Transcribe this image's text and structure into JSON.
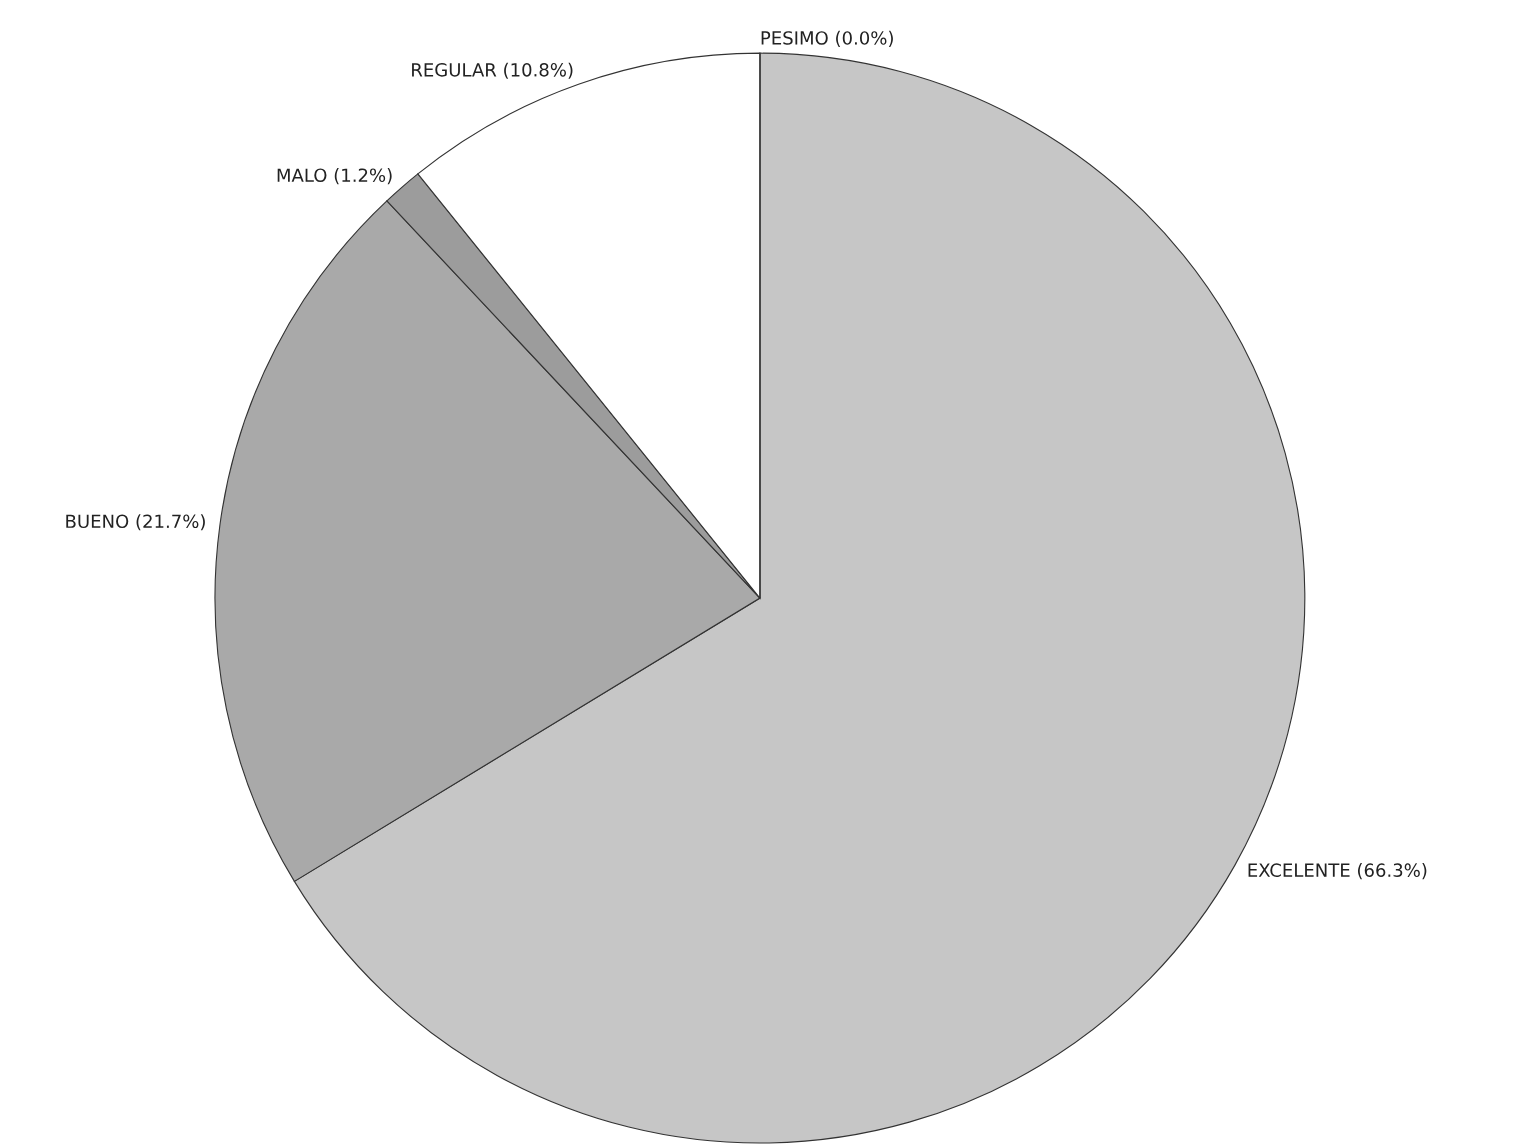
{
  "chart_data": {
    "type": "pie",
    "categories": [
      "EXCELENTE",
      "BUENO",
      "MALO",
      "REGULAR",
      "PESIMO"
    ],
    "values": [
      66.3,
      21.7,
      1.2,
      10.8,
      0.0
    ],
    "value_labels": [
      "(66.3%)",
      "(21.7%)",
      "(1.2%)",
      "(10.8%)",
      "(0.0%)"
    ],
    "colors": [
      "#c6c6c6",
      "#a9a9a9",
      "#9c9c9c",
      "#ffffff",
      "#e0e0e0"
    ]
  }
}
